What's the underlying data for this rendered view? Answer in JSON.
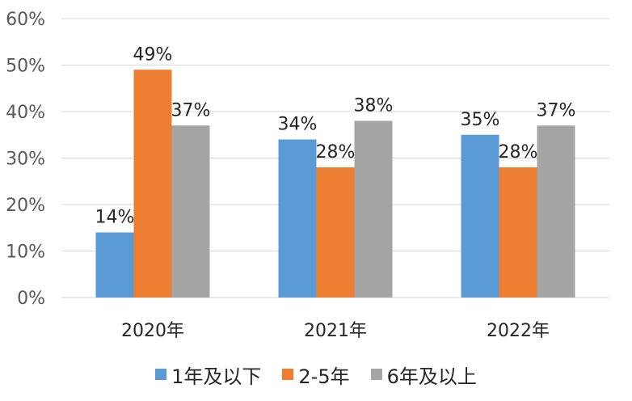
{
  "chart_data": {
    "type": "bar",
    "categories": [
      "2020年",
      "2021年",
      "2022年"
    ],
    "series": [
      {
        "name": "1年及以下",
        "values": [
          14,
          34,
          35
        ],
        "labels": [
          "14%",
          "34%",
          "35%"
        ],
        "color": "#5b9bd5"
      },
      {
        "name": "2-5年",
        "values": [
          49,
          28,
          28
        ],
        "labels": [
          "49%",
          "28%",
          "28%"
        ],
        "color": "#ed7d31"
      },
      {
        "name": "6年及以上",
        "values": [
          37,
          38,
          37
        ],
        "labels": [
          "37%",
          "38%",
          "37%"
        ],
        "color": "#a5a5a5"
      }
    ],
    "ylim": [
      0,
      60
    ],
    "yticks": [
      0,
      10,
      20,
      30,
      40,
      50,
      60
    ],
    "ytick_labels": [
      "0%",
      "10%",
      "20%",
      "30%",
      "40%",
      "50%",
      "60%"
    ],
    "grid": true,
    "legend_position": "bottom",
    "title": "",
    "xlabel": "",
    "ylabel": ""
  }
}
